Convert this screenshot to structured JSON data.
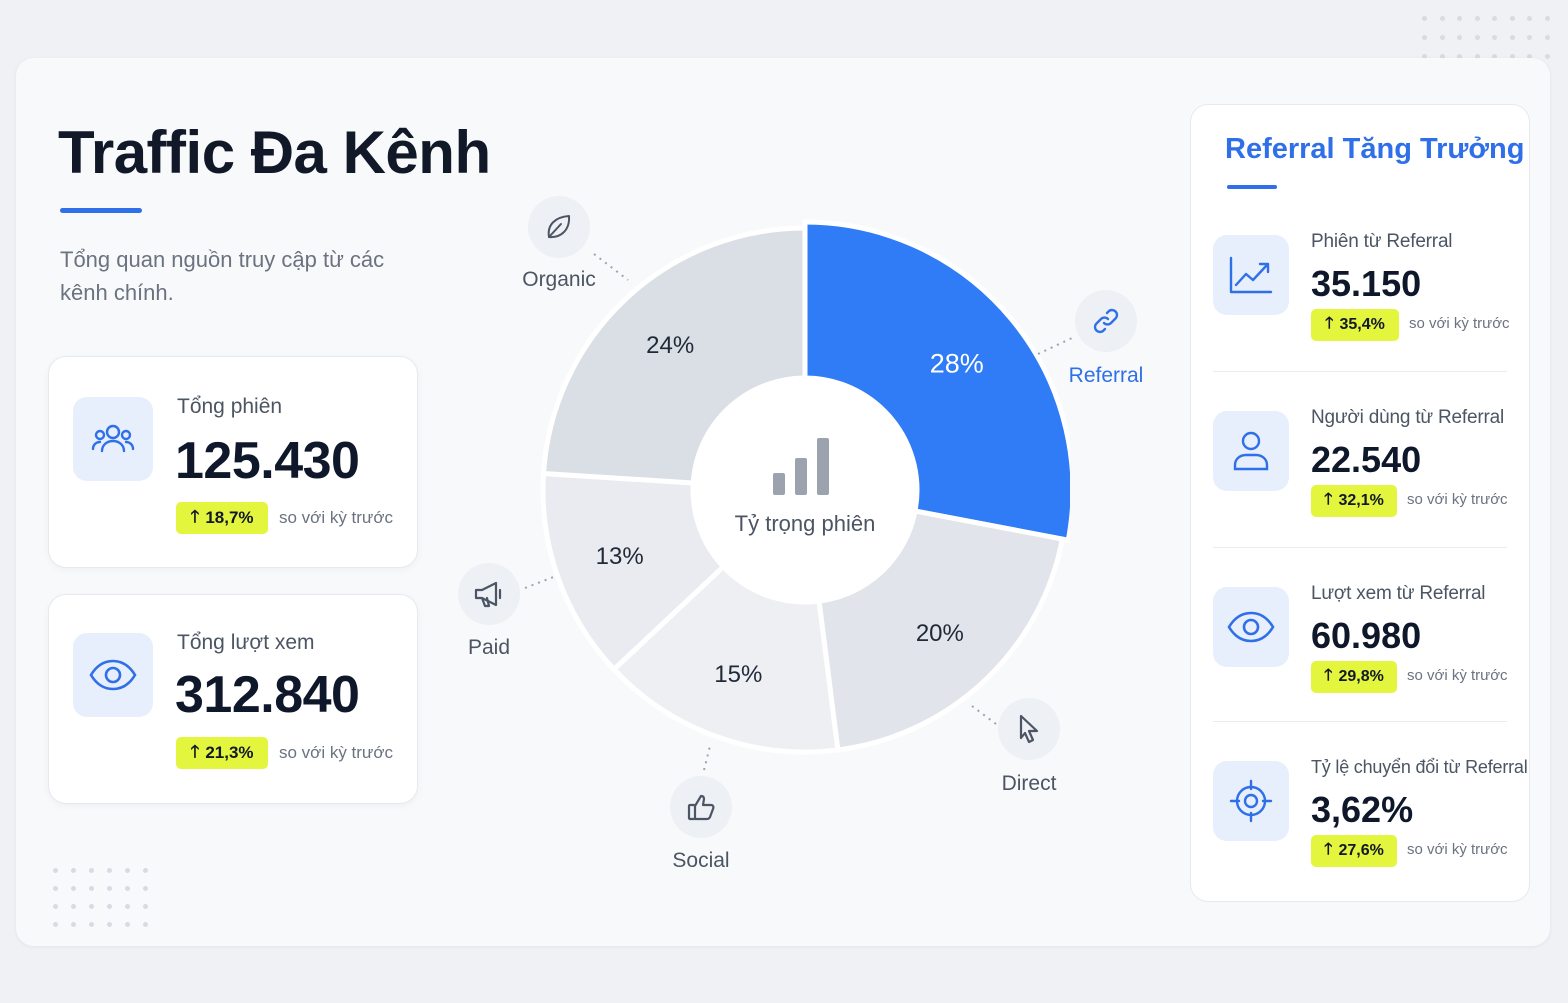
{
  "header": {
    "title": "Traffic Đa Kênh",
    "subtitle": "Tổng quan nguồn truy cập từ các kênh chính."
  },
  "summary_cards": [
    {
      "icon": "users-icon",
      "label": "Tổng phiên",
      "value": "125.430",
      "change": "18,7%",
      "note": "so với kỳ trước"
    },
    {
      "icon": "eye-icon",
      "label": "Tổng lượt xem",
      "value": "312.840",
      "change": "21,3%",
      "note": "so với kỳ trước"
    }
  ],
  "donut": {
    "center_label": "Tỷ trọng phiên",
    "colors": {
      "highlight": "#2f7cf6",
      "segments": [
        "#e1e4ea",
        "#edeff3",
        "#e9ebf0",
        "#dadee5"
      ]
    }
  },
  "chart_data": {
    "type": "pie",
    "categories": [
      "Referral",
      "Direct",
      "Social",
      "Paid",
      "Organic"
    ],
    "values": [
      28,
      20,
      15,
      13,
      24
    ],
    "labels": [
      "28%",
      "20%",
      "15%",
      "13%",
      "24%"
    ],
    "center_label": "Tỷ trọng phiên"
  },
  "channels": [
    {
      "key": "organic",
      "label": "Organic",
      "icon": "leaf-icon"
    },
    {
      "key": "referral",
      "label": "Referral",
      "icon": "link-icon"
    },
    {
      "key": "paid",
      "label": "Paid",
      "icon": "megaphone-icon"
    },
    {
      "key": "social",
      "label": "Social",
      "icon": "thumbs-up-icon"
    },
    {
      "key": "direct",
      "label": "Direct",
      "icon": "cursor-icon"
    }
  ],
  "referral_panel": {
    "title": "Referral Tăng Trưởng",
    "metrics": [
      {
        "icon": "trend-up-icon",
        "label": "Phiên từ Referral",
        "value": "35.150",
        "change": "35,4%",
        "note": "so với kỳ trước"
      },
      {
        "icon": "user-icon",
        "label": "Người dùng từ Referral",
        "value": "22.540",
        "change": "32,1%",
        "note": "so với kỳ trước"
      },
      {
        "icon": "eye-icon",
        "label": "Lượt xem từ Referral",
        "value": "60.980",
        "change": "29,8%",
        "note": "so với kỳ trước"
      },
      {
        "icon": "target-icon",
        "label": "Tỷ lệ chuyển đổi từ Referral",
        "value": "3,62%",
        "change": "27,6%",
        "note": "so với kỳ trước"
      }
    ]
  }
}
